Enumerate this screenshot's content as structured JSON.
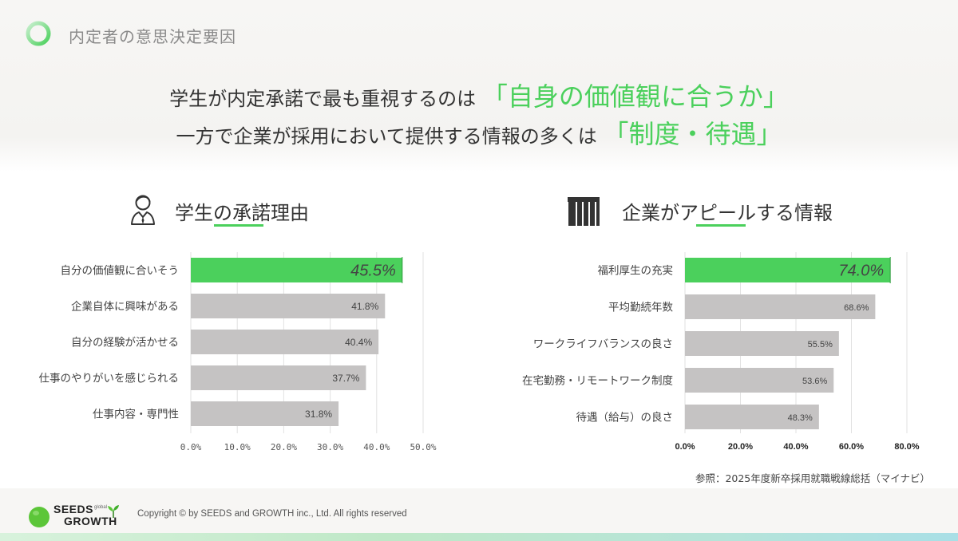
{
  "header": {
    "title": "内定者の意思決定要因"
  },
  "headline": {
    "line1_pre": "学生が内定承諾で最も重視するのは",
    "line1_highlight": "「自身の価値観に合うか」",
    "line2_pre": "一方で企業が採用において提供する情報の多くは",
    "line2_highlight": "「制度・待遇」"
  },
  "left_section": {
    "title": "学生の承諾理由"
  },
  "right_section": {
    "title": "企業がアピールする情報"
  },
  "colors": {
    "accent": "#4bd05c",
    "bar_gray": "#c5c3c3",
    "text": "#333333"
  },
  "chart_data": [
    {
      "type": "bar",
      "orientation": "horizontal",
      "categories": [
        "自分の価値観に合いそう",
        "企業自体に興味がある",
        "自分の経験が活かせる",
        "仕事のやりがいを感じられる",
        "仕事内容・専門性"
      ],
      "values": [
        45.5,
        41.8,
        40.4,
        37.7,
        31.8
      ],
      "value_labels": [
        "45.5%",
        "41.8%",
        "40.4%",
        "37.7%",
        "31.8%"
      ],
      "highlight_index": 0,
      "xlim": [
        0,
        50
      ],
      "xticks": [
        "0.0%",
        "10.0%",
        "20.0%",
        "30.0%",
        "40.0%",
        "50.0%"
      ],
      "grid": true
    },
    {
      "type": "bar",
      "orientation": "horizontal",
      "categories": [
        "福利厚生の充実",
        "平均勤続年数",
        "ワークライフバランスの良さ",
        "在宅勤務・リモートワーク制度",
        "待遇（給与）の良さ"
      ],
      "values": [
        74.0,
        68.6,
        55.5,
        53.6,
        48.3
      ],
      "value_labels": [
        "74.0%",
        "68.6%",
        "55.5%",
        "53.6%",
        "48.3%"
      ],
      "highlight_index": 0,
      "xlim": [
        0,
        80
      ],
      "xticks": [
        "0.0%",
        "20.0%",
        "40.0%",
        "60.0%",
        "80.0%"
      ],
      "grid": true
    }
  ],
  "source_note": "参照：2025年度新卒採用就職戦線総括（マイナビ）",
  "footer": {
    "logo_line1": "SEEDS",
    "logo_small": "global",
    "logo_line2": "GROWTH",
    "copyright": "Copyright © by SEEDS and GROWTH inc., Ltd. All rights reserved"
  }
}
